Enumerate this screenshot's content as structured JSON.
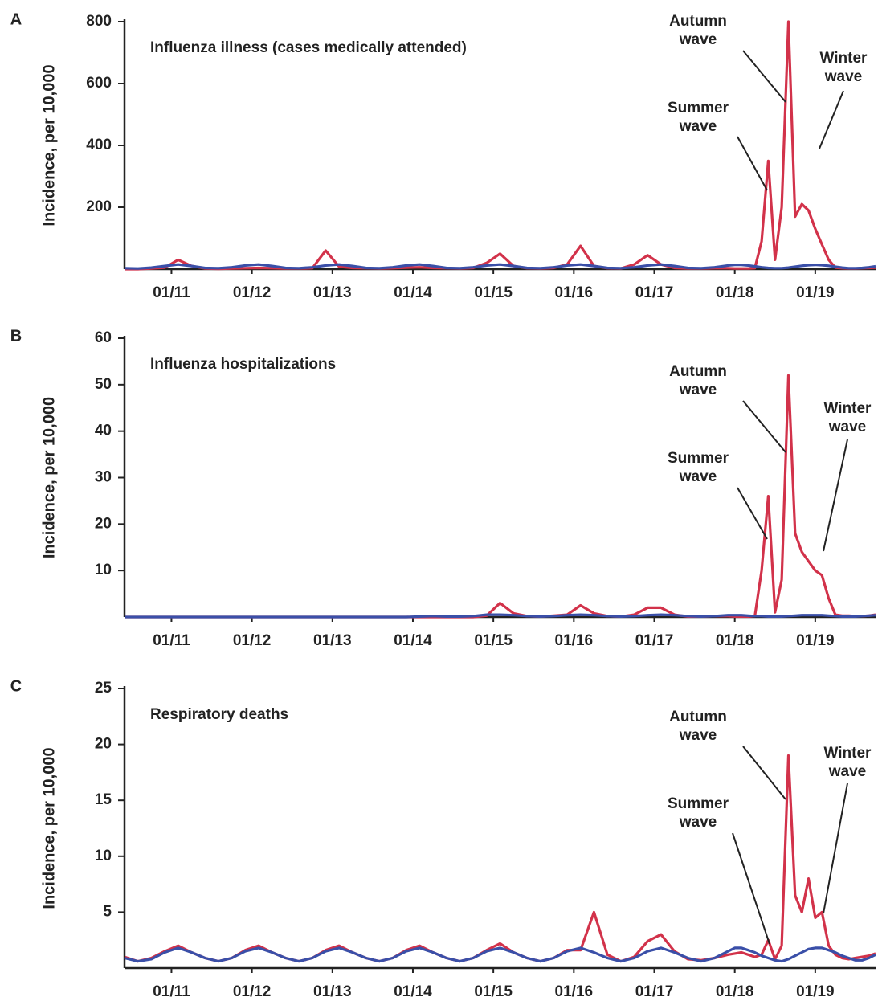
{
  "chart_data": [
    {
      "type": "line",
      "label": "A",
      "title": "Influenza illness (cases medically attended)",
      "ylabel": "Incidence, per 10,000",
      "x": [
        "06/10",
        "08/10",
        "10/10",
        "12/10",
        "02/11",
        "04/11",
        "06/11",
        "08/11",
        "10/11",
        "12/11",
        "02/12",
        "04/12",
        "06/12",
        "08/12",
        "10/12",
        "12/12",
        "02/13",
        "04/13",
        "06/13",
        "08/13",
        "10/13",
        "12/13",
        "02/14",
        "04/14",
        "06/14",
        "08/14",
        "10/14",
        "12/14",
        "02/15",
        "04/15",
        "06/15",
        "08/15",
        "10/15",
        "12/15",
        "02/16",
        "04/16",
        "06/16",
        "08/16",
        "10/16",
        "12/16",
        "02/17",
        "04/17",
        "06/17",
        "08/17",
        "10/17",
        "12/17",
        "01/18",
        "02/18",
        "03/18",
        "04/18",
        "05/18",
        "06/18",
        "07/18",
        "08/18",
        "09/18",
        "10/18",
        "11/18",
        "12/18",
        "01/19",
        "02/19",
        "03/19",
        "04/19",
        "05/19",
        "06/19",
        "07/19",
        "08/19",
        "09/19",
        "10/19"
      ],
      "xlim": [
        "06/10",
        "10/19"
      ],
      "xticks": [
        "01/11",
        "01/12",
        "01/13",
        "01/14",
        "01/15",
        "01/16",
        "01/17",
        "01/18",
        "01/19"
      ],
      "ylim": [
        0,
        800
      ],
      "yticks": [
        200,
        400,
        600,
        800
      ],
      "series": [
        {
          "color": "#d2324a",
          "values": [
            0,
            0,
            2,
            5,
            30,
            10,
            2,
            1,
            2,
            3,
            4,
            3,
            2,
            2,
            3,
            60,
            8,
            4,
            3,
            2,
            3,
            5,
            6,
            4,
            3,
            2,
            4,
            20,
            50,
            10,
            3,
            2,
            4,
            15,
            75,
            10,
            3,
            2,
            15,
            45,
            15,
            4,
            2,
            2,
            3,
            3,
            2,
            2,
            2,
            3,
            90,
            350,
            30,
            200,
            800,
            170,
            210,
            190,
            130,
            80,
            30,
            5,
            3,
            2,
            2,
            3,
            4,
            5
          ]
        },
        {
          "color": "#3a4fa8",
          "values": [
            3,
            2,
            5,
            10,
            15,
            10,
            4,
            3,
            6,
            12,
            15,
            10,
            4,
            3,
            6,
            12,
            15,
            10,
            4,
            3,
            6,
            12,
            15,
            10,
            4,
            3,
            6,
            12,
            15,
            10,
            4,
            3,
            6,
            12,
            15,
            10,
            4,
            3,
            6,
            12,
            15,
            10,
            4,
            3,
            6,
            12,
            14,
            14,
            12,
            9,
            6,
            4,
            3,
            3,
            5,
            8,
            11,
            13,
            14,
            13,
            11,
            8,
            5,
            3,
            3,
            4,
            6,
            9
          ]
        }
      ],
      "annotations": [
        {
          "lines": [
            "Autumn",
            "wave"
          ]
        },
        {
          "lines": [
            "Summer",
            "wave"
          ]
        },
        {
          "lines": [
            "Winter",
            "wave"
          ]
        }
      ]
    },
    {
      "type": "line",
      "label": "B",
      "title": "Influenza hospitalizations",
      "ylabel": "Incidence, per 10,000",
      "x": [
        "06/10",
        "08/10",
        "10/10",
        "12/10",
        "02/11",
        "04/11",
        "06/11",
        "08/11",
        "10/11",
        "12/11",
        "02/12",
        "04/12",
        "06/12",
        "08/12",
        "10/12",
        "12/12",
        "02/13",
        "04/13",
        "06/13",
        "08/13",
        "10/13",
        "12/13",
        "02/14",
        "04/14",
        "06/14",
        "08/14",
        "10/14",
        "12/14",
        "02/15",
        "04/15",
        "06/15",
        "08/15",
        "10/15",
        "12/15",
        "02/16",
        "04/16",
        "06/16",
        "08/16",
        "10/16",
        "12/16",
        "02/17",
        "04/17",
        "06/17",
        "08/17",
        "10/17",
        "12/17",
        "01/18",
        "02/18",
        "03/18",
        "04/18",
        "05/18",
        "06/18",
        "07/18",
        "08/18",
        "09/18",
        "10/18",
        "11/18",
        "12/18",
        "01/19",
        "02/19",
        "03/19",
        "04/19",
        "05/19",
        "06/19",
        "07/19",
        "08/19",
        "09/19",
        "10/19"
      ],
      "xlim": [
        "06/10",
        "10/19"
      ],
      "xticks": [
        "01/11",
        "01/12",
        "01/13",
        "01/14",
        "01/15",
        "01/16",
        "01/17",
        "01/18",
        "01/19"
      ],
      "ylim": [
        0,
        60
      ],
      "yticks": [
        10,
        20,
        30,
        40,
        50,
        60
      ],
      "series": [
        {
          "color": "#d2324a",
          "values": [
            0,
            0,
            0,
            0,
            0,
            0,
            0,
            0,
            0,
            0,
            0,
            0,
            0,
            0,
            0,
            0,
            0,
            0,
            0,
            0,
            0,
            0,
            0,
            0,
            0,
            0,
            0,
            0.3,
            3,
            0.8,
            0.2,
            0.1,
            0.3,
            0.5,
            2.5,
            0.8,
            0.2,
            0.1,
            0.5,
            2,
            2,
            0.5,
            0.1,
            0.1,
            0.2,
            0.2,
            0.1,
            0.1,
            0.1,
            0.2,
            10,
            26,
            1,
            8,
            52,
            18,
            14,
            12,
            10,
            9,
            4,
            0.5,
            0.3,
            0.3,
            0.2,
            0.2,
            0.3,
            0.5
          ]
        },
        {
          "color": "#3a4fa8",
          "values": [
            0,
            0,
            0,
            0,
            0,
            0,
            0,
            0,
            0,
            0,
            0,
            0,
            0,
            0,
            0,
            0,
            0,
            0,
            0,
            0,
            0,
            0,
            0.1,
            0.2,
            0.1,
            0.1,
            0.2,
            0.5,
            0.5,
            0.4,
            0.2,
            0.1,
            0.2,
            0.4,
            0.5,
            0.4,
            0.2,
            0.1,
            0.2,
            0.4,
            0.5,
            0.4,
            0.2,
            0.1,
            0.2,
            0.4,
            0.4,
            0.4,
            0.3,
            0.2,
            0.2,
            0.1,
            0.1,
            0.1,
            0.2,
            0.3,
            0.4,
            0.4,
            0.4,
            0.4,
            0.3,
            0.2,
            0.1,
            0.1,
            0.1,
            0.2,
            0.3,
            0.4
          ]
        }
      ],
      "annotations": [
        {
          "lines": [
            "Autumn",
            "wave"
          ]
        },
        {
          "lines": [
            "Summer",
            "wave"
          ]
        },
        {
          "lines": [
            "Winter",
            "wave"
          ]
        }
      ]
    },
    {
      "type": "line",
      "label": "C",
      "title": "Respiratory deaths",
      "ylabel": "Incidence, per 10,000",
      "x": [
        "06/10",
        "08/10",
        "10/10",
        "12/10",
        "02/11",
        "04/11",
        "06/11",
        "08/11",
        "10/11",
        "12/11",
        "02/12",
        "04/12",
        "06/12",
        "08/12",
        "10/12",
        "12/12",
        "02/13",
        "04/13",
        "06/13",
        "08/13",
        "10/13",
        "12/13",
        "02/14",
        "04/14",
        "06/14",
        "08/14",
        "10/14",
        "12/14",
        "02/15",
        "04/15",
        "06/15",
        "08/15",
        "10/15",
        "12/15",
        "02/16",
        "04/16",
        "06/16",
        "08/16",
        "10/16",
        "12/16",
        "02/17",
        "04/17",
        "06/17",
        "08/17",
        "10/17",
        "12/17",
        "01/18",
        "02/18",
        "03/18",
        "04/18",
        "05/18",
        "06/18",
        "07/18",
        "08/18",
        "09/18",
        "10/18",
        "11/18",
        "12/18",
        "01/19",
        "02/19",
        "03/19",
        "04/19",
        "05/19",
        "06/19",
        "07/19",
        "08/19",
        "09/19",
        "10/19"
      ],
      "xlim": [
        "06/10",
        "10/19"
      ],
      "xticks": [
        "01/11",
        "01/12",
        "01/13",
        "01/14",
        "01/15",
        "01/16",
        "01/17",
        "01/18",
        "01/19"
      ],
      "ylim": [
        0,
        25
      ],
      "yticks": [
        5,
        10,
        15,
        20,
        25
      ],
      "series": [
        {
          "color": "#d2324a",
          "values": [
            1.0,
            0.6,
            0.9,
            1.5,
            2.0,
            1.4,
            0.9,
            0.6,
            0.9,
            1.6,
            2.0,
            1.4,
            0.9,
            0.6,
            0.9,
            1.6,
            2.0,
            1.4,
            0.9,
            0.6,
            0.9,
            1.6,
            2.0,
            1.4,
            0.9,
            0.6,
            0.9,
            1.6,
            2.2,
            1.4,
            0.9,
            0.6,
            0.9,
            1.6,
            1.6,
            5.0,
            1.2,
            0.6,
            1.0,
            2.4,
            3.0,
            1.5,
            0.8,
            0.7,
            0.9,
            1.2,
            1.3,
            1.4,
            1.2,
            1.0,
            1.2,
            2.5,
            0.8,
            2.0,
            19,
            6.5,
            5,
            8,
            4.5,
            5,
            2.0,
            1.2,
            0.9,
            0.8,
            0.9,
            1.0,
            1.1,
            1.3
          ]
        },
        {
          "color": "#3a4fa8",
          "values": [
            0.9,
            0.6,
            0.8,
            1.4,
            1.8,
            1.4,
            0.9,
            0.6,
            0.9,
            1.5,
            1.8,
            1.4,
            0.9,
            0.6,
            0.9,
            1.5,
            1.8,
            1.4,
            0.9,
            0.6,
            0.9,
            1.5,
            1.8,
            1.4,
            0.9,
            0.6,
            0.9,
            1.5,
            1.8,
            1.4,
            0.9,
            0.6,
            0.9,
            1.5,
            1.8,
            1.4,
            0.9,
            0.6,
            0.9,
            1.5,
            1.8,
            1.4,
            0.9,
            0.6,
            0.9,
            1.5,
            1.8,
            1.8,
            1.6,
            1.4,
            1.1,
            0.9,
            0.7,
            0.6,
            0.8,
            1.1,
            1.4,
            1.7,
            1.8,
            1.8,
            1.6,
            1.4,
            1.1,
            0.9,
            0.7,
            0.7,
            0.9,
            1.2
          ]
        }
      ],
      "annotations": [
        {
          "lines": [
            "Autumn",
            "wave"
          ]
        },
        {
          "lines": [
            "Summer",
            "wave"
          ]
        },
        {
          "lines": [
            "Winter",
            "wave"
          ]
        }
      ]
    }
  ]
}
